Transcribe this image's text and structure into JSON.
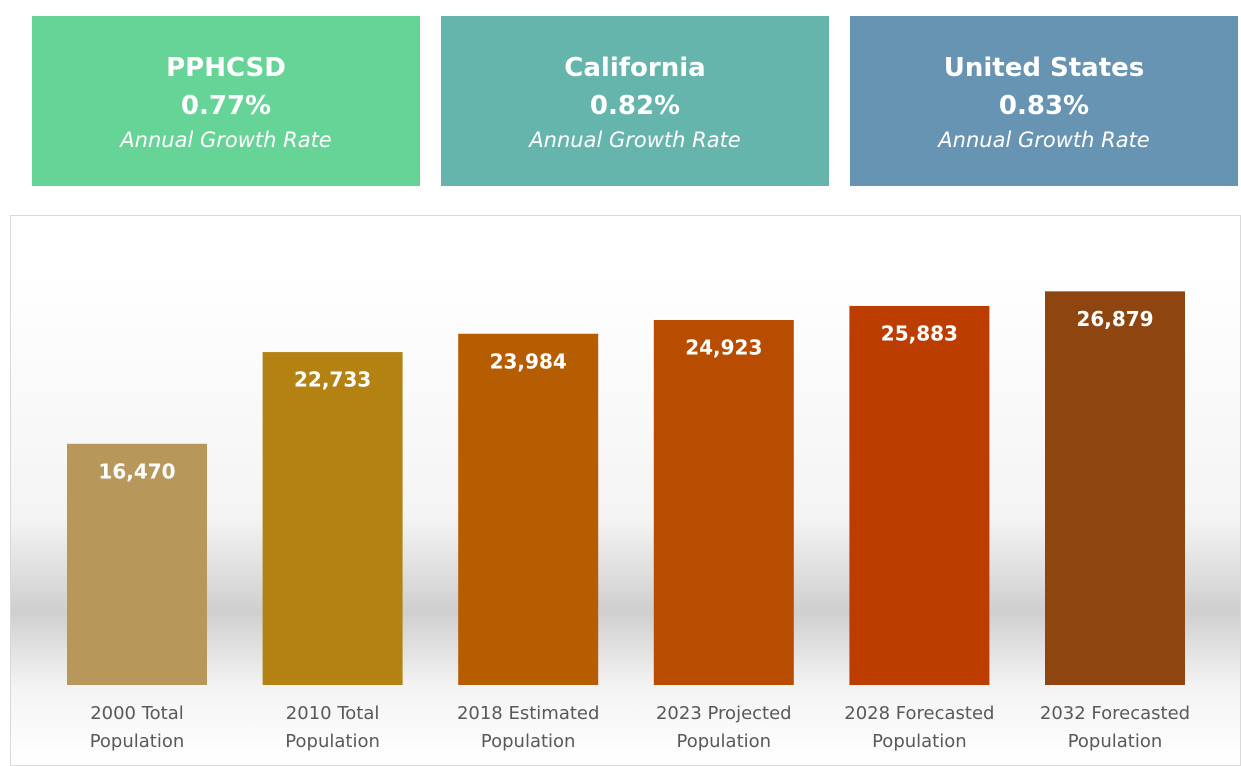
{
  "cards": [
    {
      "title": "PPHCSD",
      "value": "0.77%",
      "subtitle": "Annual Growth Rate",
      "color": "#67d497"
    },
    {
      "title": "California",
      "value": "0.82%",
      "subtitle": "Annual Growth Rate",
      "color": "#66b5ad"
    },
    {
      "title": "United States",
      "value": "0.83%",
      "subtitle": "Annual Growth Rate",
      "color": "#6894b4"
    }
  ],
  "chart_data": {
    "type": "bar",
    "categories": [
      "2000 Total Population",
      "2010 Total Population",
      "2018 Estimated Population",
      "2023 Projected Population",
      "2028 Forecasted Population",
      "2032 Forecasted Population"
    ],
    "values": [
      16470,
      22733,
      23984,
      24923,
      25883,
      26879
    ],
    "value_labels": [
      "16,470",
      "22,733",
      "23,984",
      "24,923",
      "25,883",
      "26,879"
    ],
    "colors": [
      "#b8975a",
      "#b38212",
      "#b55d00",
      "#b84c00",
      "#bb3d00",
      "#8f4510"
    ],
    "ylim": [
      0,
      31000
    ]
  }
}
